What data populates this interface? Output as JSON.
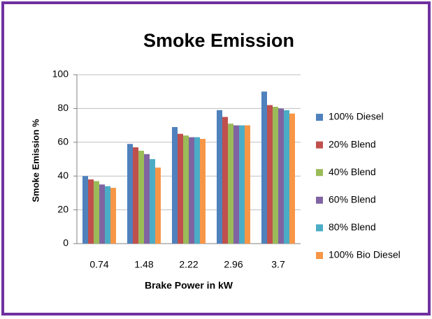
{
  "chart_data": {
    "type": "bar",
    "title": "Smoke Emission",
    "xlabel": "Brake Power in kW",
    "ylabel": "Smoke Emission  %",
    "categories": [
      "0.74",
      "1.48",
      "2.22",
      "2.96",
      "3.7"
    ],
    "series": [
      {
        "name": "100% Diesel",
        "color": "#4f81bd",
        "values": [
          40,
          59,
          69,
          79,
          90
        ]
      },
      {
        "name": "20% Blend",
        "color": "#c0504d",
        "values": [
          38,
          57,
          65,
          75,
          82
        ]
      },
      {
        "name": "40% Blend",
        "color": "#9bbb59",
        "values": [
          37,
          55,
          64,
          71,
          81
        ]
      },
      {
        "name": "60% Blend",
        "color": "#8064a2",
        "values": [
          35,
          53,
          63,
          70,
          80
        ]
      },
      {
        "name": "80% Blend",
        "color": "#4bacc6",
        "values": [
          34,
          50,
          63,
          70,
          79
        ]
      },
      {
        "name": "100% Bio Diesel",
        "color": "#f79646",
        "values": [
          33,
          45,
          62,
          70,
          77
        ]
      }
    ],
    "ylim": [
      0,
      100
    ],
    "yticks": [
      0,
      20,
      40,
      60,
      80,
      100
    ],
    "grid": true,
    "legend": "right"
  }
}
